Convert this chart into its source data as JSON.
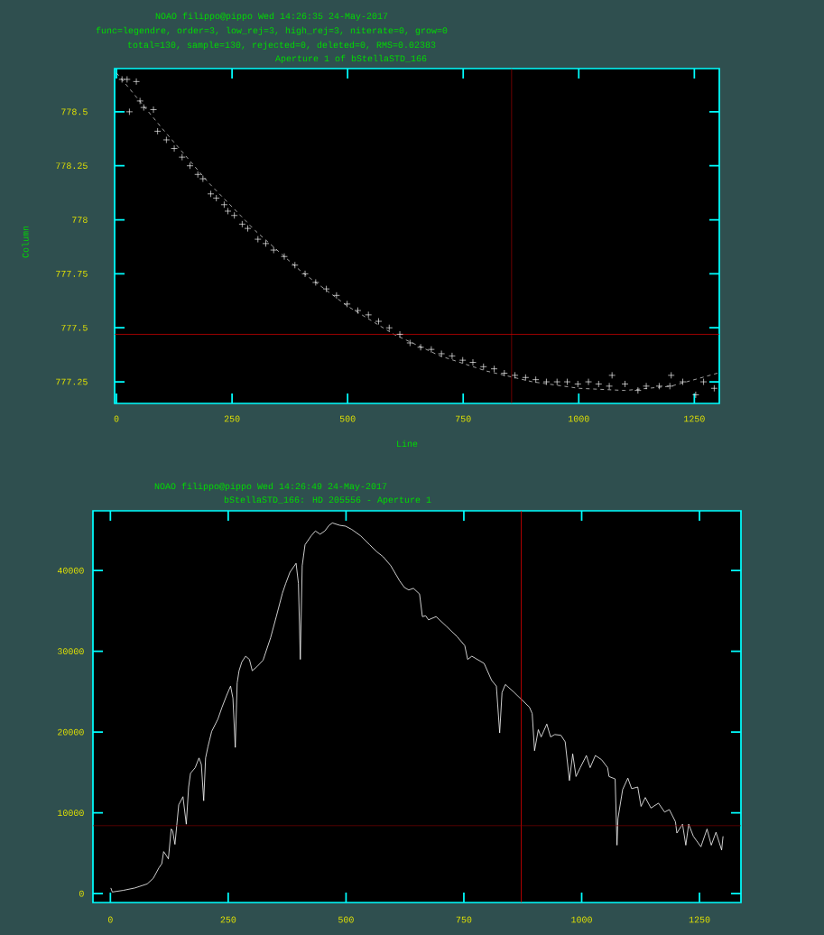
{
  "chart_data": [
    {
      "type": "scatter",
      "title": "Aperture 1 of bStellaSTD_166",
      "annotations": [
        "NOAO filippo@pippo Wed 14:26:35 24-May-2017",
        "func=legendre, order=3, low_rej=3, high_rej=3, niterate=0, grow=0",
        "total=130, sample=130, rejected=0, deleted=0, RMS=0.02383"
      ],
      "xlabel": "Line",
      "ylabel": "Column",
      "xlim": [
        -4,
        1304
      ],
      "ylim": [
        777.15,
        778.7
      ],
      "xticks": [
        0,
        250,
        500,
        750,
        1000,
        1250
      ],
      "yticks": [
        777.25,
        777.5,
        777.75,
        778,
        778.25,
        778.5
      ],
      "series": [
        {
          "marker": "cross",
          "color": "#ffffff",
          "x": [
            12,
            23,
            28,
            43,
            51,
            59,
            80,
            89,
            108,
            125,
            142,
            159,
            176,
            187,
            204,
            216,
            233,
            241,
            255,
            272,
            284,
            306,
            323,
            340,
            363,
            386,
            408,
            431,
            454,
            476,
            499,
            522,
            545,
            567,
            590,
            613,
            635,
            658,
            681,
            703,
            726,
            749,
            771,
            794,
            817,
            839,
            862,
            885,
            907,
            930,
            953,
            975,
            998,
            1021,
            1043,
            1066,
            1072,
            1100,
            1128,
            1146,
            1174,
            1197,
            1200,
            1225,
            1253,
            1270,
            1293
          ],
          "values": [
            778.65,
            778.65,
            778.5,
            778.64,
            778.55,
            778.52,
            778.51,
            778.41,
            778.37,
            778.33,
            778.29,
            778.25,
            778.21,
            778.19,
            778.12,
            778.1,
            778.07,
            778.04,
            778.02,
            777.98,
            777.96,
            777.91,
            777.89,
            777.86,
            777.83,
            777.79,
            777.75,
            777.71,
            777.68,
            777.65,
            777.61,
            777.58,
            777.56,
            777.53,
            777.5,
            777.47,
            777.43,
            777.41,
            777.4,
            777.38,
            777.37,
            777.35,
            777.34,
            777.32,
            777.31,
            777.29,
            777.28,
            777.27,
            777.26,
            777.25,
            777.25,
            777.25,
            777.24,
            777.25,
            777.24,
            777.23,
            777.28,
            777.24,
            777.21,
            777.23,
            777.23,
            777.23,
            777.28,
            777.25,
            777.19,
            777.25,
            777.22
          ]
        },
        {
          "type": "line",
          "line_style": "dashed",
          "color": "#c8c8c8",
          "x": [
            0,
            100,
            200,
            300,
            400,
            500,
            600,
            700,
            800,
            900,
            1000,
            1100,
            1200,
            1300
          ],
          "values": [
            778.68,
            778.42,
            778.17,
            777.95,
            777.76,
            777.6,
            777.47,
            777.37,
            777.3,
            777.25,
            777.22,
            777.21,
            777.23,
            777.29
          ]
        }
      ],
      "ref_lines": [
        {
          "axis": "x",
          "value": 855,
          "color": "#cc0000"
        },
        {
          "axis": "y",
          "value": 777.47,
          "color": "#cc0000"
        }
      ]
    },
    {
      "type": "line",
      "title": "bStellaSTD_166: HD 205556 - Aperture 1",
      "annotations": [
        "NOAO filippo@pippo Wed 14:26:49 24-May-2017"
      ],
      "xlim": [
        -37,
        1338
      ],
      "ylim": [
        -1100,
        47400
      ],
      "xticks": [
        0,
        250,
        500,
        750,
        1000,
        1250
      ],
      "yticks": [
        0,
        10000,
        20000,
        30000,
        40000
      ],
      "series": [
        {
          "color": "#ffffff",
          "x": [
            1,
            4,
            27,
            52,
            78,
            91,
            103,
            109,
            113,
            119,
            123,
            129,
            132,
            137,
            145,
            154,
            161,
            166,
            170,
            180,
            188,
            193,
            198,
            202,
            207,
            215,
            228,
            237,
            247,
            255,
            260,
            265,
            269,
            273,
            279,
            287,
            295,
            301,
            311,
            324,
            340,
            352,
            365,
            372,
            381,
            394,
            399,
            403,
            407,
            413,
            426,
            435,
            445,
            455,
            464,
            471,
            487,
            499,
            512,
            531,
            550,
            566,
            579,
            595,
            614,
            624,
            633,
            643,
            656,
            662,
            669,
            675,
            691,
            713,
            736,
            752,
            758,
            767,
            793,
            809,
            819,
            826,
            831,
            838,
            857,
            873,
            889,
            895,
            900,
            908,
            914,
            926,
            934,
            943,
            956,
            965,
            974,
            981,
            988,
            997,
            1010,
            1018,
            1029,
            1042,
            1055,
            1058,
            1071,
            1075,
            1077,
            1087,
            1098,
            1106,
            1119,
            1126,
            1135,
            1147,
            1163,
            1176,
            1186,
            1199,
            1202,
            1214,
            1221,
            1227,
            1237,
            1253,
            1266,
            1275,
            1285,
            1297,
            1300
          ],
          "values": [
            700,
            200,
            400,
            700,
            1200,
            1900,
            3200,
            3700,
            5200,
            4700,
            4300,
            8000,
            7800,
            6100,
            11000,
            12000,
            8600,
            13200,
            14900,
            15600,
            16800,
            16000,
            11500,
            16800,
            18200,
            20100,
            21600,
            23100,
            24600,
            25700,
            24200,
            18100,
            26100,
            27600,
            28700,
            29400,
            29000,
            27600,
            28100,
            28900,
            31700,
            34300,
            37200,
            38400,
            39800,
            40900,
            38400,
            29000,
            40600,
            43200,
            44300,
            44900,
            44500,
            44900,
            45600,
            45900,
            45600,
            45500,
            45100,
            44300,
            43200,
            42300,
            41700,
            40600,
            38700,
            37900,
            37600,
            37800,
            37100,
            34300,
            34400,
            33900,
            34300,
            33100,
            31800,
            30700,
            29000,
            29400,
            28500,
            26400,
            25700,
            19900,
            24900,
            25900,
            24900,
            24000,
            23100,
            22300,
            17700,
            20300,
            19400,
            21000,
            19400,
            19700,
            19600,
            18800,
            14000,
            17300,
            14500,
            15600,
            17100,
            15600,
            17100,
            16600,
            15600,
            14500,
            14200,
            6000,
            9300,
            12900,
            14300,
            13000,
            13200,
            10800,
            11900,
            10600,
            11200,
            10100,
            10400,
            8900,
            7500,
            8600,
            6000,
            8600,
            7100,
            5800,
            8000,
            6000,
            7600,
            5400,
            7100
          ]
        }
      ],
      "ref_lines": [
        {
          "axis": "x",
          "value": 872,
          "color": "#ff0000"
        },
        {
          "axis": "y",
          "value": 8400,
          "color": "#8b0000"
        }
      ]
    }
  ]
}
